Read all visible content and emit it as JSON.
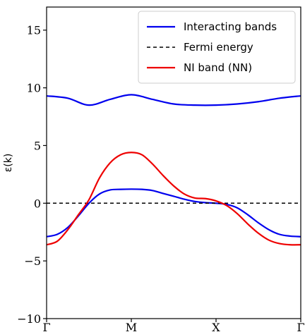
{
  "chart_data": {
    "type": "line",
    "title": "",
    "xlabel": "",
    "ylabel": "ε(k)",
    "x_ticks": [
      "Γ",
      "M",
      "X",
      "Γ"
    ],
    "x_tick_positions": [
      0,
      1,
      2,
      3
    ],
    "xlim": [
      0,
      3
    ],
    "ylim": [
      -10,
      17
    ],
    "y_ticks": [
      -10,
      -5,
      0,
      5,
      10,
      15
    ],
    "y_tick_labels": [
      "−10",
      "−5",
      "0",
      "5",
      "10",
      "15"
    ],
    "grid": false,
    "legend_position": "top-right",
    "series": [
      {
        "name": "Interacting bands",
        "color": "#0000ee",
        "style": "solid",
        "x": [
          0,
          0.25,
          0.5,
          0.75,
          1,
          1.25,
          1.5,
          1.75,
          2,
          2.25,
          2.5,
          2.75,
          3
        ],
        "y": [
          9.3,
          9.1,
          8.5,
          9.0,
          9.4,
          9.0,
          8.6,
          8.5,
          8.5,
          8.6,
          8.8,
          9.1,
          9.3
        ]
      },
      {
        "name": "Interacting bands",
        "color": "#0000ee",
        "style": "solid",
        "x": [
          0,
          0.125,
          0.25,
          0.375,
          0.5,
          0.625,
          0.75,
          0.875,
          1,
          1.125,
          1.25,
          1.375,
          1.5,
          1.625,
          1.75,
          1.875,
          2,
          2.125,
          2.25,
          2.375,
          2.5,
          2.625,
          2.75,
          2.875,
          3
        ],
        "y": [
          -2.9,
          -2.7,
          -2.1,
          -1.1,
          0.0,
          0.8,
          1.15,
          1.2,
          1.22,
          1.2,
          1.1,
          0.85,
          0.6,
          0.35,
          0.15,
          0.05,
          0.0,
          -0.1,
          -0.4,
          -1.0,
          -1.7,
          -2.3,
          -2.7,
          -2.85,
          -2.9
        ]
      },
      {
        "name": "Fermi energy",
        "color": "#000000",
        "style": "dashed",
        "x": [
          0,
          3
        ],
        "y": [
          0,
          0
        ]
      },
      {
        "name": "NI band (NN)",
        "color": "#ee0000",
        "style": "solid",
        "x": [
          0,
          0.125,
          0.25,
          0.375,
          0.5,
          0.625,
          0.75,
          0.875,
          1,
          1.125,
          1.25,
          1.375,
          1.5,
          1.625,
          1.75,
          1.875,
          2,
          2.125,
          2.25,
          2.375,
          2.5,
          2.625,
          2.75,
          2.875,
          3
        ],
        "y": [
          -3.6,
          -3.3,
          -2.3,
          -1.0,
          0.3,
          2.2,
          3.5,
          4.2,
          4.4,
          4.2,
          3.4,
          2.4,
          1.5,
          0.8,
          0.45,
          0.4,
          0.2,
          -0.2,
          -0.9,
          -1.8,
          -2.6,
          -3.2,
          -3.5,
          -3.6,
          -3.6
        ]
      }
    ],
    "legend": [
      "Interacting bands",
      "Fermi energy",
      "NI band (NN)"
    ]
  }
}
